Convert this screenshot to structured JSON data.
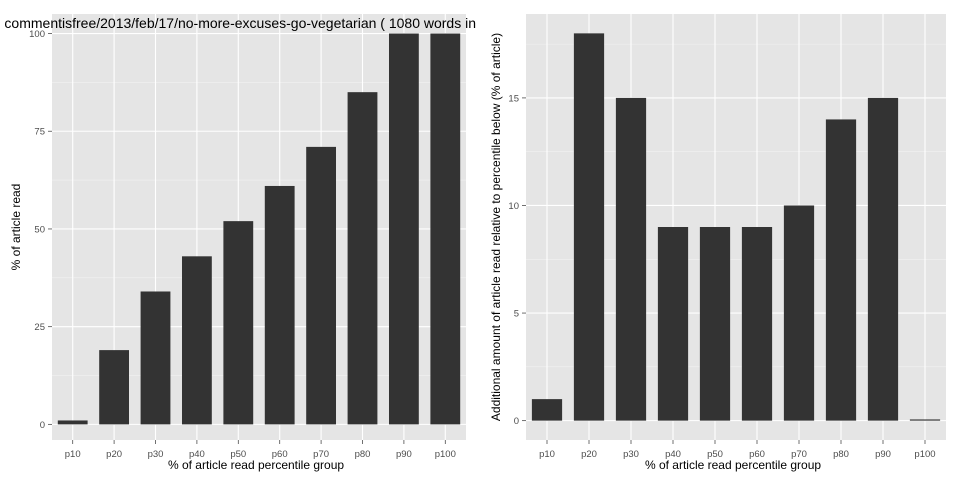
{
  "chart_data": [
    {
      "type": "bar",
      "title": "commentisfree/2013/feb/17/no-more-excuses-go-vegetarian ( 1080 words in",
      "xlabel": "% of article read percentile group",
      "ylabel": "% of article read",
      "categories": [
        "p10",
        "p20",
        "p30",
        "p40",
        "p50",
        "p60",
        "p70",
        "p80",
        "p90",
        "p100"
      ],
      "values": [
        1,
        19,
        34,
        43,
        52,
        61,
        71,
        85,
        100,
        100
      ],
      "ylim": [
        -4,
        105
      ],
      "yticks": [
        0,
        25,
        50,
        75,
        100
      ],
      "ytick_labels": [
        "0",
        "25",
        "50",
        "75",
        "100"
      ],
      "grid": true,
      "bar_color": "#333333",
      "panel_color": "#e5e5e5"
    },
    {
      "type": "bar",
      "title": "",
      "xlabel": "% of article read percentile group",
      "ylabel": "Additional amount of article read relative to percentile below (% of article)",
      "categories": [
        "p10",
        "p20",
        "p30",
        "p40",
        "p50",
        "p60",
        "p70",
        "p80",
        "p90",
        "p100"
      ],
      "values": [
        1,
        18,
        15,
        9,
        9,
        9,
        10,
        14,
        15,
        0
      ],
      "ylim": [
        -0.9,
        18.9
      ],
      "yticks": [
        0,
        5,
        10,
        15
      ],
      "ytick_labels": [
        "0",
        "5",
        "10",
        "15"
      ],
      "grid": true,
      "bar_color": "#333333",
      "panel_color": "#e5e5e5"
    }
  ]
}
